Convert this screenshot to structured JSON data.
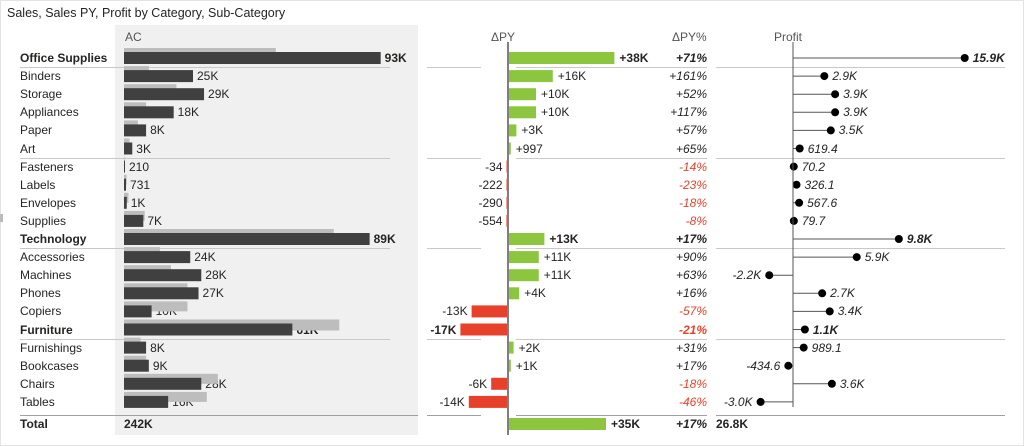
{
  "visual": {
    "title": "Sales, Sales PY, Profit by Category, Sub-Category",
    "columns": {
      "ac": "AC",
      "dpy": "ΔPY",
      "dpy_pct": "ΔPY%",
      "profit": "Profit"
    }
  },
  "colors": {
    "ac_bar": "#404040",
    "py_bar": "#bdbdbd",
    "positive": "#8cc63f",
    "negative": "#e8412b",
    "axis": "#7f7f7f",
    "lollipop": "#000000",
    "ac_background": "#f0f0f0"
  },
  "chart_data": {
    "type": "table",
    "rows": [
      {
        "label": "Office Supplies",
        "is_group": true,
        "ac": 93000,
        "py": 55000,
        "ac_text": "93K",
        "dpy": 38000,
        "dpy_text": "+38K",
        "dpy_pct": 71,
        "dpy_pct_text": "+71%",
        "profit": 15900,
        "profit_text": "15.9K"
      },
      {
        "label": "Binders",
        "is_group": false,
        "ac": 25000,
        "py": 9000,
        "ac_text": "25K",
        "dpy": 16000,
        "dpy_text": "+16K",
        "dpy_pct": 161,
        "dpy_pct_text": "+161%",
        "profit": 2900,
        "profit_text": "2.9K"
      },
      {
        "label": "Storage",
        "is_group": false,
        "ac": 29000,
        "py": 19000,
        "ac_text": "29K",
        "dpy": 10000,
        "dpy_text": "+10K",
        "dpy_pct": 52,
        "dpy_pct_text": "+52%",
        "profit": 3900,
        "profit_text": "3.9K"
      },
      {
        "label": "Appliances",
        "is_group": false,
        "ac": 18000,
        "py": 8000,
        "ac_text": "18K",
        "dpy": 10000,
        "dpy_text": "+10K",
        "dpy_pct": 117,
        "dpy_pct_text": "+117%",
        "profit": 3900,
        "profit_text": "3.9K"
      },
      {
        "label": "Paper",
        "is_group": false,
        "ac": 8000,
        "py": 5000,
        "ac_text": "8K",
        "dpy": 3000,
        "dpy_text": "+3K",
        "dpy_pct": 57,
        "dpy_pct_text": "+57%",
        "profit": 3500,
        "profit_text": "3.5K"
      },
      {
        "label": "Art",
        "is_group": false,
        "ac": 3000,
        "py": 2000,
        "ac_text": "3K",
        "dpy": 997,
        "dpy_text": "+997",
        "dpy_pct": 65,
        "dpy_pct_text": "+65%",
        "profit": 619.4,
        "profit_text": "619.4"
      },
      {
        "label": "Fasteners",
        "is_group": false,
        "ac": 210,
        "py": 244,
        "ac_text": "210",
        "dpy": -34,
        "dpy_text": "-34",
        "dpy_pct": -14,
        "dpy_pct_text": "-14%",
        "profit": 70.2,
        "profit_text": "70.2"
      },
      {
        "label": "Labels",
        "is_group": false,
        "ac": 731,
        "py": 953,
        "ac_text": "731",
        "dpy": -222,
        "dpy_text": "-222",
        "dpy_pct": -23,
        "dpy_pct_text": "-23%",
        "profit": 326.1,
        "profit_text": "326.1"
      },
      {
        "label": "Envelopes",
        "is_group": false,
        "ac": 1000,
        "py": 1600,
        "ac_text": "1K",
        "dpy": -290,
        "dpy_text": "-290",
        "dpy_pct": -18,
        "dpy_pct_text": "-18%",
        "profit": 567.6,
        "profit_text": "567.6"
      },
      {
        "label": "Supplies",
        "is_group": false,
        "ac": 7000,
        "py": 7500,
        "ac_text": "7K",
        "dpy": -554,
        "dpy_text": "-554",
        "dpy_pct": -8,
        "dpy_pct_text": "-8%",
        "profit": 79.7,
        "profit_text": "79.7"
      },
      {
        "label": "Technology",
        "is_group": true,
        "ac": 89000,
        "py": 76000,
        "ac_text": "89K",
        "dpy": 13000,
        "dpy_text": "+13K",
        "dpy_pct": 17,
        "dpy_pct_text": "+17%",
        "profit": 9800,
        "profit_text": "9.8K"
      },
      {
        "label": "Accessories",
        "is_group": false,
        "ac": 24000,
        "py": 13000,
        "ac_text": "24K",
        "dpy": 11000,
        "dpy_text": "+11K",
        "dpy_pct": 90,
        "dpy_pct_text": "+90%",
        "profit": 5900,
        "profit_text": "5.9K"
      },
      {
        "label": "Machines",
        "is_group": false,
        "ac": 28000,
        "py": 17000,
        "ac_text": "28K",
        "dpy": 11000,
        "dpy_text": "+11K",
        "dpy_pct": 63,
        "dpy_pct_text": "+63%",
        "profit": -2200,
        "profit_text": "-2.2K"
      },
      {
        "label": "Phones",
        "is_group": false,
        "ac": 27000,
        "py": 23000,
        "ac_text": "27K",
        "dpy": 4000,
        "dpy_text": "+4K",
        "dpy_pct": 16,
        "dpy_pct_text": "+16%",
        "profit": 2700,
        "profit_text": "2.7K"
      },
      {
        "label": "Copiers",
        "is_group": false,
        "ac": 10000,
        "py": 23000,
        "ac_text": "10K",
        "dpy": -13000,
        "dpy_text": "-13K",
        "dpy_pct": -57,
        "dpy_pct_text": "-57%",
        "profit": 3400,
        "profit_text": "3.4K"
      },
      {
        "label": "Furniture",
        "is_group": true,
        "ac": 61000,
        "py": 78000,
        "ac_text": "61K",
        "dpy": -17000,
        "dpy_text": "-17K",
        "dpy_pct": -21,
        "dpy_pct_text": "-21%",
        "profit": 1100,
        "profit_text": "1.1K"
      },
      {
        "label": "Furnishings",
        "is_group": false,
        "ac": 8000,
        "py": 6000,
        "ac_text": "8K",
        "dpy": 2000,
        "dpy_text": "+2K",
        "dpy_pct": 31,
        "dpy_pct_text": "+31%",
        "profit": 989.1,
        "profit_text": "989.1"
      },
      {
        "label": "Bookcases",
        "is_group": false,
        "ac": 9000,
        "py": 8000,
        "ac_text": "9K",
        "dpy": 1000,
        "dpy_text": "+1K",
        "dpy_pct": 17,
        "dpy_pct_text": "+17%",
        "profit": -434.6,
        "profit_text": "-434.6"
      },
      {
        "label": "Chairs",
        "is_group": false,
        "ac": 28000,
        "py": 34000,
        "ac_text": "28K",
        "dpy": -6000,
        "dpy_text": "-6K",
        "dpy_pct": -18,
        "dpy_pct_text": "-18%",
        "profit": 3600,
        "profit_text": "3.6K"
      },
      {
        "label": "Tables",
        "is_group": false,
        "ac": 16000,
        "py": 30000,
        "ac_text": "16K",
        "dpy": -14000,
        "dpy_text": "-14K",
        "dpy_pct": -46,
        "dpy_pct_text": "-46%",
        "profit": -3000,
        "profit_text": "-3.0K"
      }
    ],
    "total": {
      "label": "Total",
      "ac": 242000,
      "ac_text": "242K",
      "dpy": 35000,
      "dpy_text": "+35K",
      "dpy_pct": 17,
      "dpy_pct_text": "+17%",
      "profit": 26800,
      "profit_text": "26.8K"
    }
  }
}
